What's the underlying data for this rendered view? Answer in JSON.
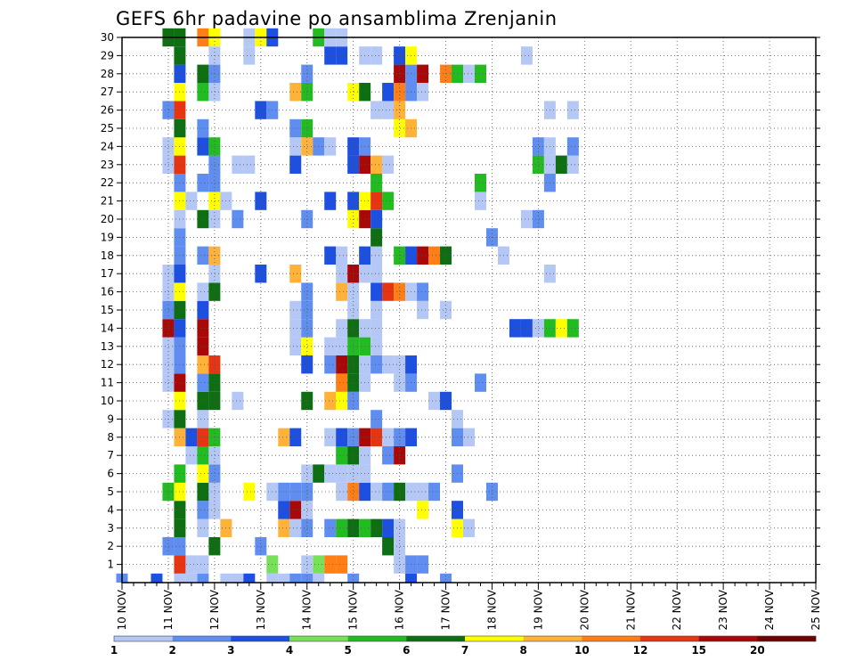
{
  "chart_data": {
    "type": "heatmap",
    "title": "GEFS 6hr padavine po ansamblima Zrenjanin",
    "xlabel": "",
    "ylabel": "",
    "x_tick_labels": [
      "10 NOV",
      "11 NOV",
      "12 NOV",
      "13 NOV",
      "14 NOV",
      "15 NOV",
      "16 NOV",
      "17 NOV",
      "18 NOV",
      "19 NOV",
      "20 NOV",
      "21 NOV",
      "22 NOV",
      "23 NOV",
      "24 NOV",
      "25 NOV"
    ],
    "y_tick_labels": [
      "1",
      "2",
      "3",
      "4",
      "5",
      "6",
      "7",
      "8",
      "9",
      "10",
      "11",
      "12",
      "13",
      "14",
      "15",
      "16",
      "17",
      "18",
      "19",
      "20",
      "21",
      "22",
      "23",
      "24",
      "25",
      "26",
      "27",
      "28",
      "29",
      "30"
    ],
    "xlim": [
      0,
      60
    ],
    "ylim": [
      0,
      30
    ],
    "grid": true,
    "legend_placement": "bottom",
    "legend": {
      "labels": [
        "1",
        "2",
        "3",
        "4",
        "5",
        "6",
        "7",
        "8",
        "10",
        "12",
        "15",
        "20"
      ],
      "colors": [
        "#b4c7f5",
        "#5f8ef0",
        "#1d4fe0",
        "#78e058",
        "#22bb22",
        "#0e6e12",
        "#ffff00",
        "#ffb23a",
        "#ff7f16",
        "#e63512",
        "#a80808",
        "#6e0202"
      ]
    },
    "cells": [
      [
        5,
        0,
        0
      ],
      [
        9,
        0,
        0
      ],
      [
        10,
        0,
        0
      ],
      [
        13,
        0,
        0
      ],
      [
        14,
        0,
        0
      ],
      [
        17,
        0,
        0
      ],
      [
        15,
        0,
        1
      ],
      [
        28,
        0,
        1
      ],
      [
        20,
        0,
        1
      ],
      [
        11,
        0,
        2
      ],
      [
        16,
        0,
        1
      ],
      [
        7,
        0,
        1
      ],
      [
        3,
        0,
        2
      ],
      [
        0,
        0,
        1
      ],
      [
        6,
        0,
        0
      ],
      [
        25,
        0,
        2
      ],
      [
        5,
        1,
        9
      ],
      [
        6,
        1,
        0
      ],
      [
        7,
        1,
        0
      ],
      [
        13,
        1,
        3
      ],
      [
        17,
        1,
        3
      ],
      [
        18,
        1,
        8
      ],
      [
        19,
        1,
        8
      ],
      [
        24,
        1,
        0
      ],
      [
        25,
        1,
        1
      ],
      [
        26,
        1,
        1
      ],
      [
        16,
        1,
        0
      ],
      [
        4,
        2,
        1
      ],
      [
        5,
        2,
        1
      ],
      [
        8,
        2,
        5
      ],
      [
        12,
        2,
        1
      ],
      [
        23,
        2,
        5
      ],
      [
        24,
        2,
        0
      ],
      [
        5,
        3,
        5
      ],
      [
        7,
        3,
        0
      ],
      [
        9,
        3,
        7
      ],
      [
        14,
        3,
        7
      ],
      [
        15,
        3,
        0
      ],
      [
        16,
        3,
        1
      ],
      [
        18,
        3,
        1
      ],
      [
        19,
        3,
        4
      ],
      [
        20,
        3,
        5
      ],
      [
        21,
        3,
        4
      ],
      [
        22,
        3,
        5
      ],
      [
        23,
        3,
        2
      ],
      [
        24,
        3,
        0
      ],
      [
        29,
        3,
        6
      ],
      [
        30,
        3,
        0
      ],
      [
        5,
        4,
        5
      ],
      [
        7,
        4,
        1
      ],
      [
        8,
        4,
        0
      ],
      [
        14,
        4,
        2
      ],
      [
        15,
        4,
        10
      ],
      [
        16,
        4,
        0
      ],
      [
        26,
        4,
        6
      ],
      [
        29,
        4,
        2
      ],
      [
        4,
        5,
        4
      ],
      [
        5,
        5,
        6
      ],
      [
        7,
        5,
        5
      ],
      [
        8,
        5,
        0
      ],
      [
        11,
        5,
        6
      ],
      [
        16,
        5,
        1
      ],
      [
        13,
        5,
        0
      ],
      [
        14,
        5,
        1
      ],
      [
        15,
        5,
        1
      ],
      [
        19,
        5,
        0
      ],
      [
        20,
        5,
        8
      ],
      [
        21,
        5,
        2
      ],
      [
        22,
        5,
        0
      ],
      [
        23,
        5,
        1
      ],
      [
        24,
        5,
        5
      ],
      [
        25,
        5,
        0
      ],
      [
        26,
        5,
        0
      ],
      [
        27,
        5,
        1
      ],
      [
        32,
        5,
        1
      ],
      [
        5,
        6,
        4
      ],
      [
        7,
        6,
        6
      ],
      [
        8,
        6,
        1
      ],
      [
        16,
        6,
        0
      ],
      [
        17,
        6,
        5
      ],
      [
        18,
        6,
        0
      ],
      [
        19,
        6,
        0
      ],
      [
        20,
        6,
        0
      ],
      [
        21,
        6,
        0
      ],
      [
        29,
        6,
        1
      ],
      [
        6,
        7,
        0
      ],
      [
        7,
        7,
        4
      ],
      [
        8,
        7,
        0
      ],
      [
        19,
        7,
        4
      ],
      [
        20,
        7,
        5
      ],
      [
        21,
        7,
        0
      ],
      [
        23,
        7,
        1
      ],
      [
        24,
        7,
        10
      ],
      [
        5,
        8,
        7
      ],
      [
        6,
        8,
        2
      ],
      [
        7,
        8,
        9
      ],
      [
        8,
        8,
        4
      ],
      [
        14,
        8,
        7
      ],
      [
        15,
        8,
        2
      ],
      [
        18,
        8,
        0
      ],
      [
        19,
        8,
        2
      ],
      [
        20,
        8,
        1
      ],
      [
        21,
        8,
        10
      ],
      [
        22,
        8,
        9
      ],
      [
        23,
        8,
        0
      ],
      [
        24,
        8,
        1
      ],
      [
        25,
        8,
        2
      ],
      [
        29,
        8,
        1
      ],
      [
        30,
        8,
        0
      ],
      [
        4,
        9,
        0
      ],
      [
        5,
        9,
        5
      ],
      [
        7,
        9,
        0
      ],
      [
        22,
        9,
        1
      ],
      [
        29,
        9,
        0
      ],
      [
        5,
        10,
        6
      ],
      [
        7,
        10,
        5
      ],
      [
        8,
        10,
        5
      ],
      [
        10,
        10,
        0
      ],
      [
        16,
        10,
        5
      ],
      [
        18,
        10,
        7
      ],
      [
        19,
        10,
        6
      ],
      [
        20,
        10,
        1
      ],
      [
        27,
        10,
        0
      ],
      [
        28,
        10,
        2
      ],
      [
        4,
        11,
        0
      ],
      [
        5,
        11,
        10
      ],
      [
        7,
        11,
        1
      ],
      [
        8,
        11,
        5
      ],
      [
        19,
        11,
        8
      ],
      [
        20,
        11,
        5
      ],
      [
        21,
        11,
        0
      ],
      [
        24,
        11,
        0
      ],
      [
        25,
        11,
        1
      ],
      [
        31,
        11,
        1
      ],
      [
        4,
        12,
        0
      ],
      [
        5,
        12,
        1
      ],
      [
        7,
        12,
        7
      ],
      [
        8,
        12,
        9
      ],
      [
        16,
        12,
        2
      ],
      [
        18,
        12,
        1
      ],
      [
        19,
        12,
        10
      ],
      [
        20,
        12,
        5
      ],
      [
        21,
        12,
        0
      ],
      [
        22,
        12,
        1
      ],
      [
        23,
        12,
        0
      ],
      [
        24,
        12,
        0
      ],
      [
        25,
        12,
        2
      ],
      [
        4,
        13,
        0
      ],
      [
        5,
        13,
        1
      ],
      [
        7,
        13,
        10
      ],
      [
        15,
        13,
        0
      ],
      [
        16,
        13,
        6
      ],
      [
        18,
        13,
        0
      ],
      [
        19,
        13,
        0
      ],
      [
        20,
        13,
        4
      ],
      [
        21,
        13,
        4
      ],
      [
        22,
        13,
        0
      ],
      [
        4,
        14,
        10
      ],
      [
        5,
        14,
        2
      ],
      [
        7,
        14,
        10
      ],
      [
        15,
        14,
        0
      ],
      [
        16,
        14,
        1
      ],
      [
        19,
        14,
        0
      ],
      [
        20,
        14,
        5
      ],
      [
        21,
        14,
        0
      ],
      [
        22,
        14,
        0
      ],
      [
        34,
        14,
        2
      ],
      [
        35,
        14,
        2
      ],
      [
        36,
        14,
        0
      ],
      [
        37,
        14,
        4
      ],
      [
        38,
        14,
        6
      ],
      [
        39,
        14,
        4
      ],
      [
        4,
        15,
        1
      ],
      [
        5,
        15,
        5
      ],
      [
        7,
        15,
        2
      ],
      [
        15,
        15,
        0
      ],
      [
        16,
        15,
        1
      ],
      [
        20,
        15,
        0
      ],
      [
        22,
        15,
        0
      ],
      [
        26,
        15,
        0
      ],
      [
        28,
        15,
        0
      ],
      [
        4,
        16,
        0
      ],
      [
        5,
        16,
        6
      ],
      [
        7,
        16,
        0
      ],
      [
        8,
        16,
        5
      ],
      [
        16,
        16,
        1
      ],
      [
        19,
        16,
        7
      ],
      [
        20,
        16,
        0
      ],
      [
        22,
        16,
        2
      ],
      [
        23,
        16,
        9
      ],
      [
        24,
        16,
        8
      ],
      [
        25,
        16,
        0
      ],
      [
        26,
        16,
        1
      ],
      [
        4,
        17,
        0
      ],
      [
        5,
        17,
        2
      ],
      [
        8,
        17,
        0
      ],
      [
        12,
        17,
        2
      ],
      [
        15,
        17,
        7
      ],
      [
        19,
        17,
        0
      ],
      [
        20,
        17,
        10
      ],
      [
        21,
        17,
        0
      ],
      [
        22,
        17,
        0
      ],
      [
        37,
        17,
        0
      ],
      [
        5,
        18,
        1
      ],
      [
        7,
        18,
        1
      ],
      [
        8,
        18,
        7
      ],
      [
        18,
        18,
        2
      ],
      [
        19,
        18,
        0
      ],
      [
        21,
        18,
        2
      ],
      [
        22,
        18,
        0
      ],
      [
        24,
        18,
        4
      ],
      [
        25,
        18,
        2
      ],
      [
        26,
        18,
        10
      ],
      [
        27,
        18,
        8
      ],
      [
        28,
        18,
        5
      ],
      [
        33,
        18,
        0
      ],
      [
        5,
        19,
        1
      ],
      [
        22,
        19,
        5
      ],
      [
        32,
        19,
        1
      ],
      [
        5,
        20,
        0
      ],
      [
        7,
        20,
        5
      ],
      [
        8,
        20,
        0
      ],
      [
        10,
        20,
        1
      ],
      [
        16,
        20,
        1
      ],
      [
        20,
        20,
        6
      ],
      [
        21,
        20,
        10
      ],
      [
        22,
        20,
        2
      ],
      [
        35,
        20,
        0
      ],
      [
        36,
        20,
        1
      ],
      [
        5,
        21,
        6
      ],
      [
        6,
        21,
        0
      ],
      [
        8,
        21,
        6
      ],
      [
        9,
        21,
        0
      ],
      [
        12,
        21,
        2
      ],
      [
        18,
        21,
        2
      ],
      [
        20,
        21,
        2
      ],
      [
        21,
        21,
        6
      ],
      [
        22,
        21,
        9
      ],
      [
        23,
        21,
        4
      ],
      [
        31,
        21,
        0
      ],
      [
        5,
        22,
        1
      ],
      [
        7,
        22,
        1
      ],
      [
        8,
        22,
        1
      ],
      [
        22,
        22,
        4
      ],
      [
        31,
        22,
        4
      ],
      [
        37,
        22,
        1
      ],
      [
        4,
        23,
        0
      ],
      [
        5,
        23,
        9
      ],
      [
        8,
        23,
        1
      ],
      [
        10,
        23,
        0
      ],
      [
        11,
        23,
        0
      ],
      [
        15,
        23,
        2
      ],
      [
        20,
        23,
        2
      ],
      [
        21,
        23,
        10
      ],
      [
        22,
        23,
        7
      ],
      [
        23,
        23,
        0
      ],
      [
        36,
        23,
        4
      ],
      [
        37,
        23,
        0
      ],
      [
        38,
        23,
        5
      ],
      [
        39,
        23,
        0
      ],
      [
        4,
        24,
        0
      ],
      [
        5,
        24,
        6
      ],
      [
        7,
        24,
        2
      ],
      [
        8,
        24,
        4
      ],
      [
        15,
        24,
        0
      ],
      [
        16,
        24,
        7
      ],
      [
        17,
        24,
        1
      ],
      [
        18,
        24,
        0
      ],
      [
        20,
        24,
        2
      ],
      [
        21,
        24,
        1
      ],
      [
        36,
        24,
        1
      ],
      [
        37,
        24,
        0
      ],
      [
        39,
        24,
        1
      ],
      [
        5,
        25,
        5
      ],
      [
        7,
        25,
        1
      ],
      [
        15,
        25,
        1
      ],
      [
        16,
        25,
        4
      ],
      [
        24,
        25,
        6
      ],
      [
        25,
        25,
        7
      ],
      [
        4,
        26,
        1
      ],
      [
        5,
        26,
        9
      ],
      [
        12,
        26,
        2
      ],
      [
        13,
        26,
        1
      ],
      [
        22,
        26,
        0
      ],
      [
        23,
        26,
        0
      ],
      [
        24,
        26,
        7
      ],
      [
        37,
        26,
        0
      ],
      [
        39,
        26,
        0
      ],
      [
        5,
        27,
        6
      ],
      [
        7,
        27,
        4
      ],
      [
        8,
        27,
        0
      ],
      [
        15,
        27,
        7
      ],
      [
        16,
        27,
        4
      ],
      [
        20,
        27,
        6
      ],
      [
        21,
        27,
        5
      ],
      [
        23,
        27,
        2
      ],
      [
        24,
        27,
        8
      ],
      [
        25,
        27,
        1
      ],
      [
        26,
        27,
        0
      ],
      [
        5,
        28,
        2
      ],
      [
        7,
        28,
        5
      ],
      [
        8,
        28,
        1
      ],
      [
        16,
        28,
        1
      ],
      [
        24,
        28,
        10
      ],
      [
        25,
        28,
        1
      ],
      [
        26,
        28,
        10
      ],
      [
        28,
        28,
        8
      ],
      [
        29,
        28,
        4
      ],
      [
        30,
        28,
        0
      ],
      [
        31,
        28,
        4
      ],
      [
        5,
        29,
        5
      ],
      [
        8,
        29,
        0
      ],
      [
        11,
        29,
        0
      ],
      [
        18,
        29,
        2
      ],
      [
        19,
        29,
        2
      ],
      [
        21,
        29,
        0
      ],
      [
        22,
        29,
        0
      ],
      [
        24,
        29,
        2
      ],
      [
        25,
        29,
        6
      ],
      [
        35,
        29,
        0
      ],
      [
        4,
        30,
        5
      ],
      [
        5,
        30,
        5
      ],
      [
        7,
        30,
        8
      ],
      [
        8,
        30,
        6
      ],
      [
        11,
        30,
        0
      ],
      [
        12,
        30,
        6
      ],
      [
        13,
        30,
        2
      ],
      [
        17,
        30,
        4
      ],
      [
        18,
        30,
        0
      ],
      [
        19,
        30,
        0
      ]
    ]
  }
}
